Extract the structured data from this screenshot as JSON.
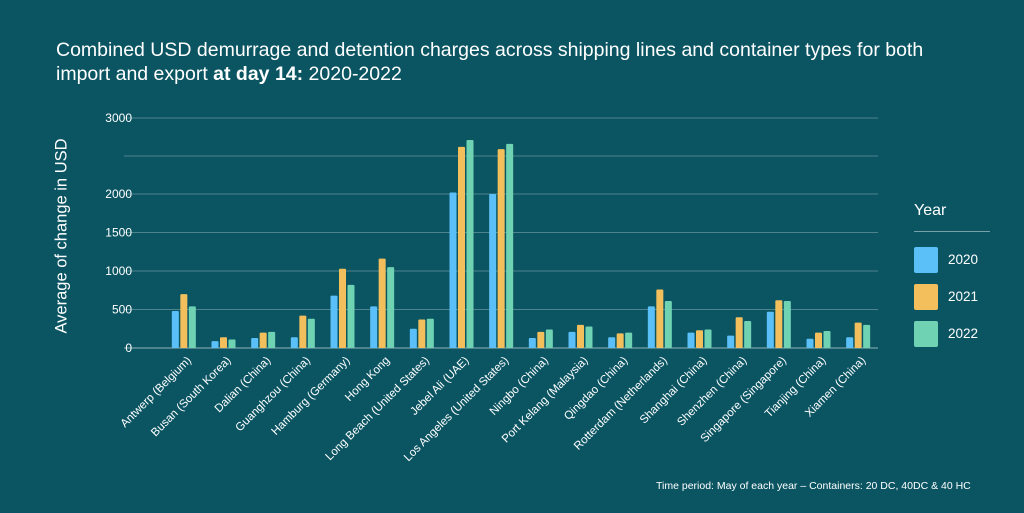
{
  "chart_data": {
    "type": "bar",
    "title_part1": "Combined USD demurrage and detention charges across shipping lines and container types for both import and export ",
    "title_bold": "at day 14:",
    "title_part2": " 2020-2022",
    "ylabel": "Average of change in USD",
    "xlabel": "",
    "yticks": [
      0,
      500,
      1000,
      1500,
      2000,
      3000
    ],
    "ylim": [
      0,
      3000
    ],
    "legend_title": "Year",
    "legend_position": "right",
    "grid": true,
    "footnote": "Time period: May of each year – Containers: 20 DC, 40DC & 40 HC",
    "categories": [
      "Antwerp (Belgium)",
      "Busan (South Korea)",
      "Dalian (China)",
      "Guanghzou (China)",
      "Hamburg (Germany)",
      "Hong Kong",
      "Long Beach (United States)",
      "Jebel Ali (UAE)",
      "Los Angeles (United States)",
      "Ningbo (China)",
      "Port Kelang (Malaysia)",
      "Qingdao (China)",
      "Rotterdam (Netherlands)",
      "Shanghai (China)",
      "Shenzhen (China)",
      "Singapore (Singapore)",
      "Tianjing (China)",
      "Xiamen (China)"
    ],
    "series": [
      {
        "name": "2020",
        "color": "#5bc0f8",
        "values": [
          480,
          90,
          130,
          140,
          680,
          540,
          250,
          2020,
          2000,
          130,
          210,
          140,
          540,
          200,
          160,
          470,
          120,
          140
        ]
      },
      {
        "name": "2021",
        "color": "#f2bf5c",
        "values": [
          700,
          140,
          200,
          420,
          1030,
          1160,
          370,
          2620,
          2590,
          210,
          300,
          190,
          760,
          230,
          400,
          620,
          200,
          330
        ]
      },
      {
        "name": "2022",
        "color": "#6fd3b3",
        "values": [
          540,
          110,
          210,
          380,
          820,
          1050,
          380,
          2710,
          2660,
          240,
          280,
          200,
          610,
          240,
          350,
          610,
          220,
          300
        ]
      }
    ]
  }
}
